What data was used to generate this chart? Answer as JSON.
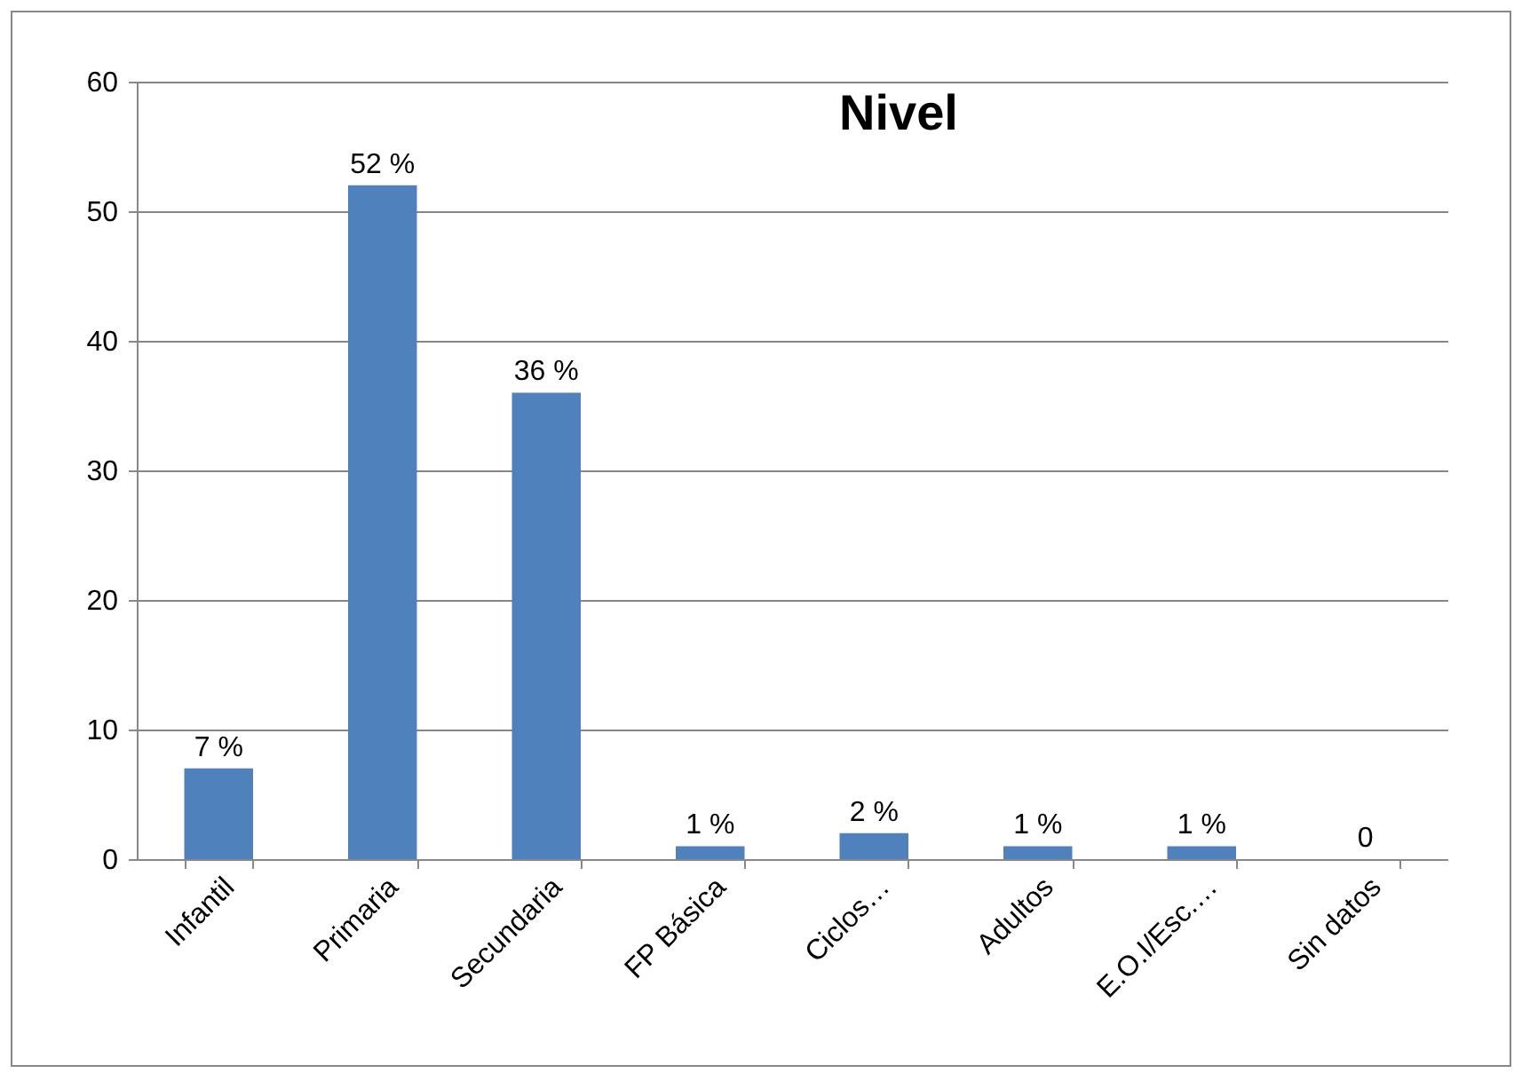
{
  "chart_data": {
    "type": "bar",
    "title": "Nivel",
    "categories": [
      "Infantil",
      "Primaria",
      "Secundaria",
      "FP Básica",
      "Ciclos…",
      "Adultos",
      "E.O.I/Esc.…",
      "Sin datos"
    ],
    "values": [
      7,
      52,
      36,
      1,
      2,
      1,
      1,
      0
    ],
    "value_labels": [
      "7 %",
      "52 %",
      "36 %",
      "1 %",
      "2 %",
      "1 %",
      "1 %",
      "0"
    ],
    "color": "#4f81bd",
    "ylim": [
      0,
      60
    ],
    "yticks": [
      0,
      10,
      20,
      30,
      40,
      50,
      60
    ],
    "grid": "y"
  }
}
